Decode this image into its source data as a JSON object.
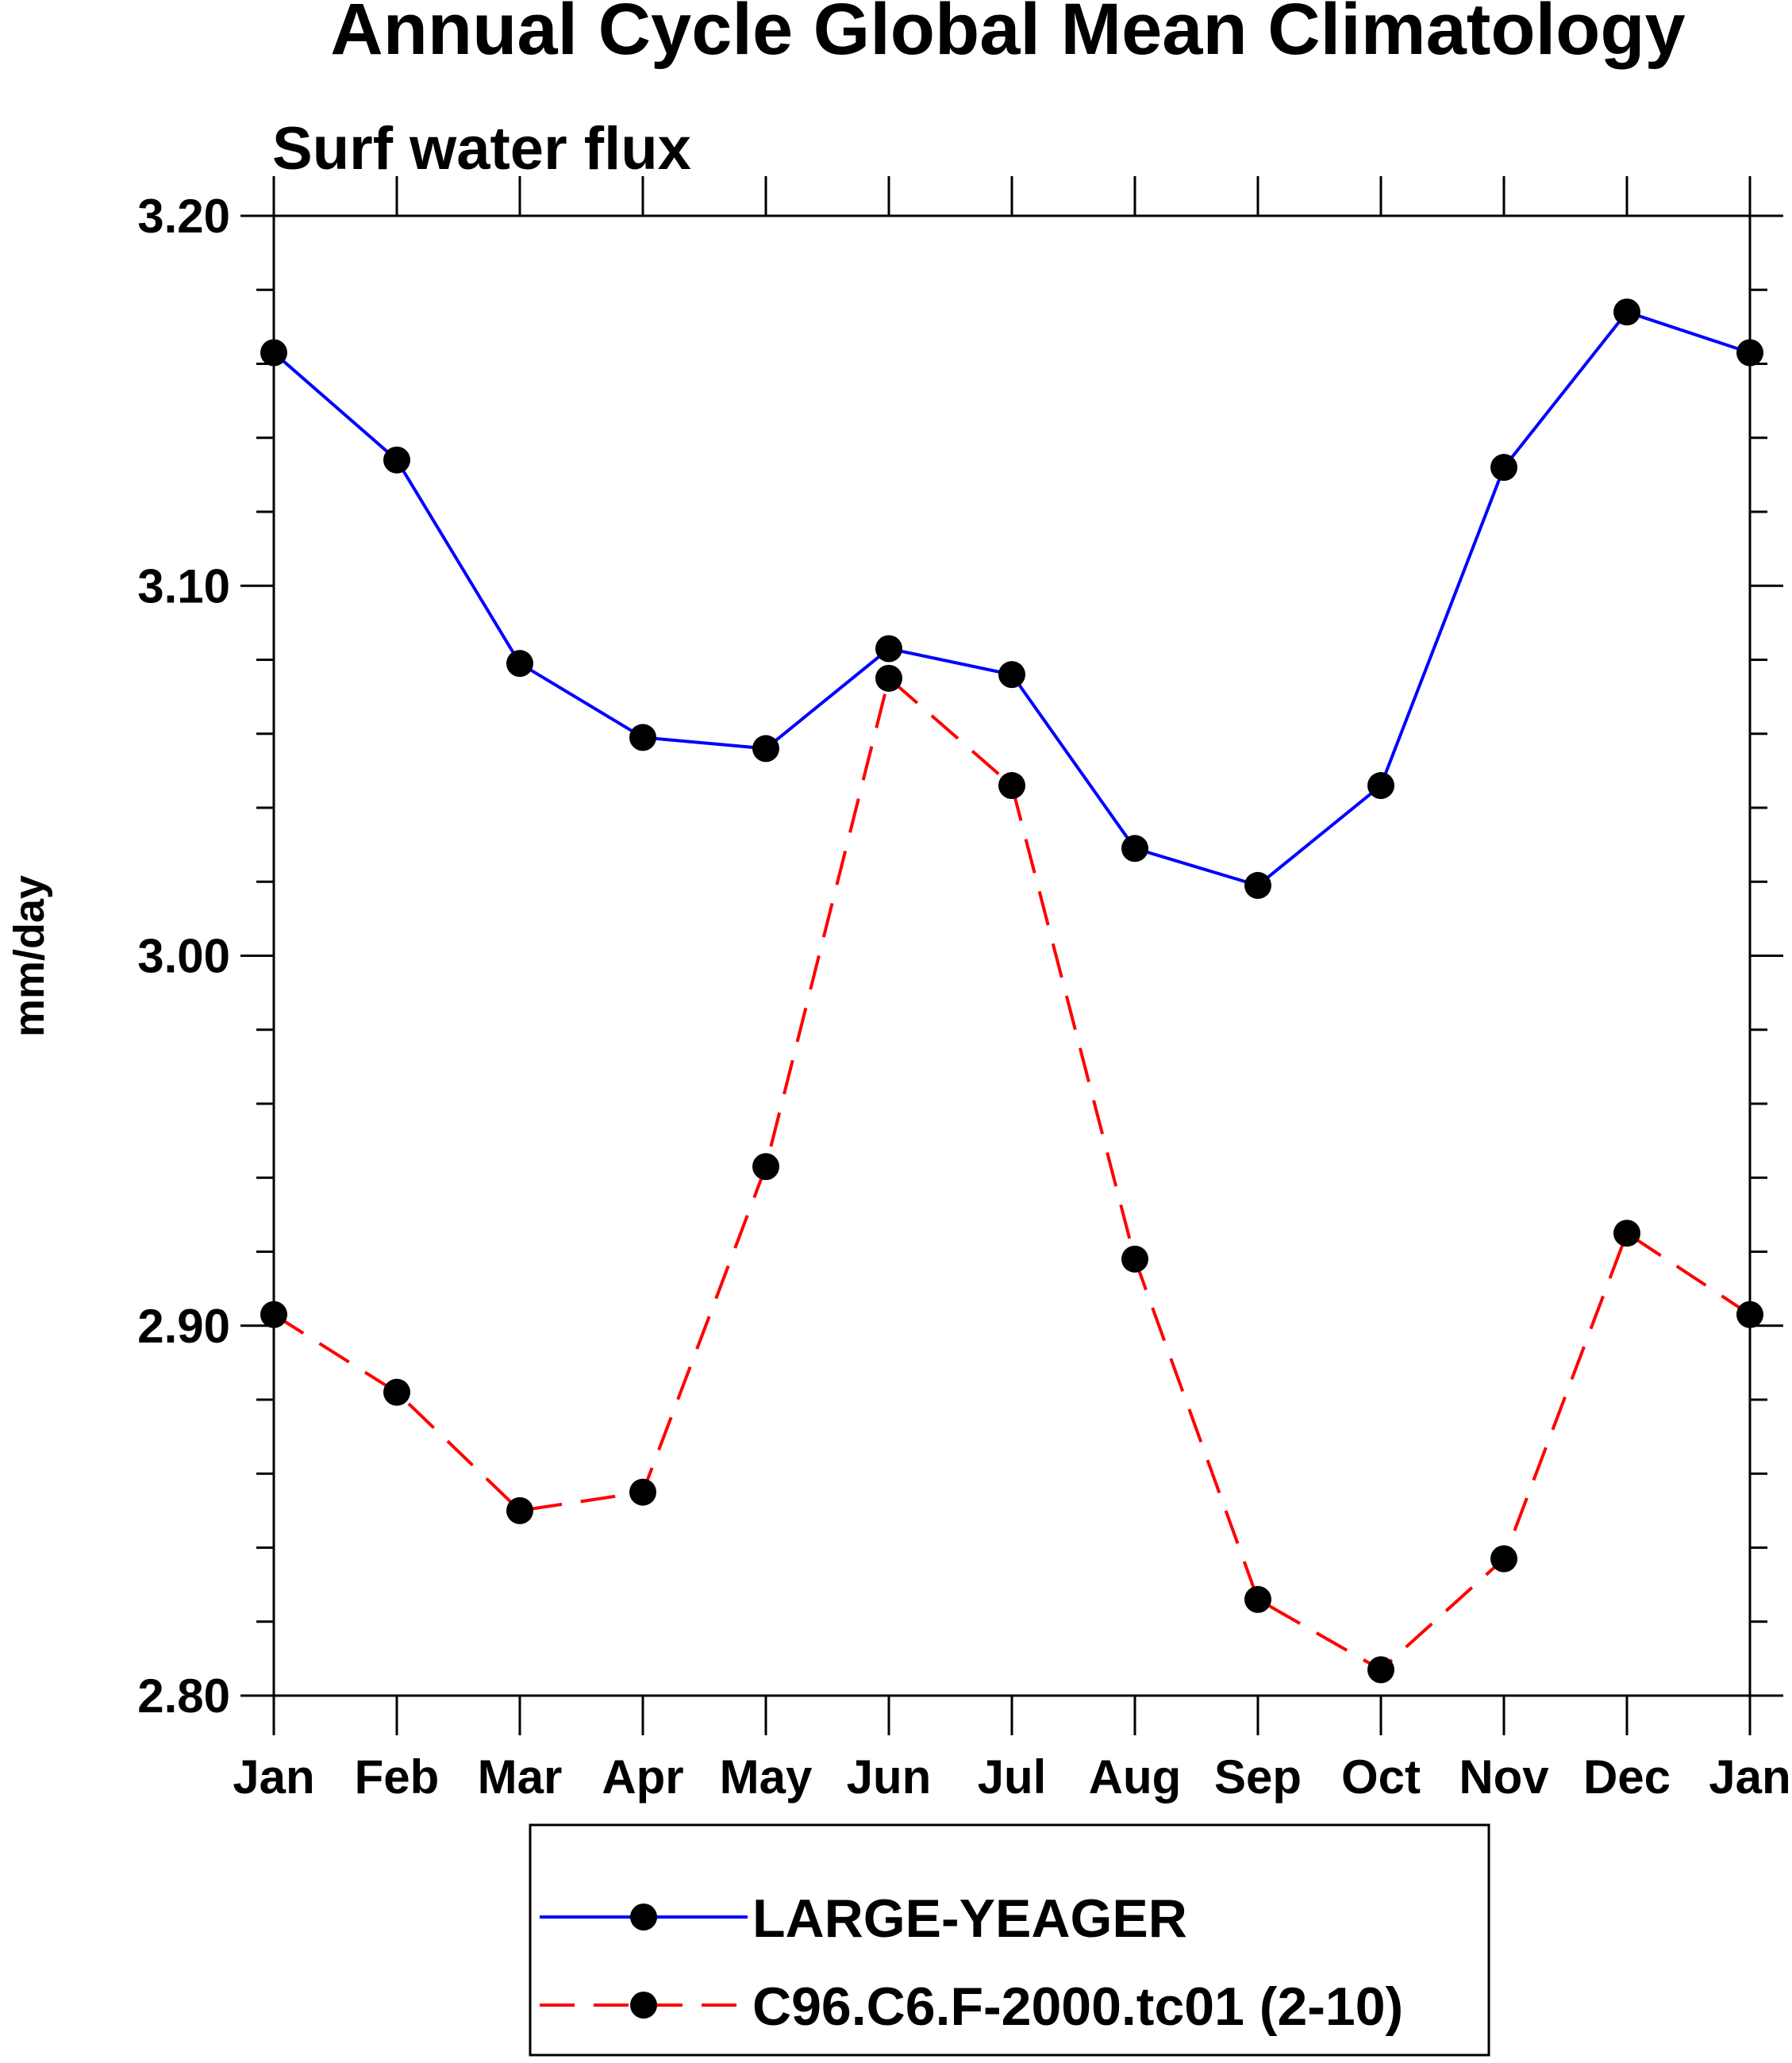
{
  "chart_data": {
    "type": "line",
    "title": "Annual Cycle Global Mean Climatology",
    "subtitle": "Surf water flux",
    "xlabel": "",
    "ylabel": "mm/day",
    "categories": [
      "Jan",
      "Feb",
      "Mar",
      "Apr",
      "May",
      "Jun",
      "Jul",
      "Aug",
      "Sep",
      "Oct",
      "Nov",
      "Dec",
      "Jan"
    ],
    "ylim": [
      2.8,
      3.2
    ],
    "yticks": [
      2.8,
      2.9,
      3.0,
      3.1,
      3.2
    ],
    "ytick_labels": [
      "2.80",
      "2.90",
      "3.00",
      "3.10",
      "3.20"
    ],
    "grid": false,
    "legend_position": "bottom-center",
    "series": [
      {
        "name": "LARGE-YEAGER",
        "color": "#0000ff",
        "dash": "solid",
        "marker": "filled-circle",
        "values": [
          3.163,
          3.134,
          3.079,
          3.059,
          3.056,
          3.083,
          3.076,
          3.029,
          3.019,
          3.046,
          3.132,
          3.174,
          3.163
        ]
      },
      {
        "name": "C96.C6.F-2000.tc01 (2-10)",
        "color": "#ff0000",
        "dash": "dashed",
        "marker": "filled-circle",
        "values": [
          2.903,
          2.882,
          2.85,
          2.855,
          2.943,
          3.075,
          3.046,
          2.918,
          2.826,
          2.807,
          2.837,
          2.925,
          2.903
        ]
      }
    ]
  }
}
